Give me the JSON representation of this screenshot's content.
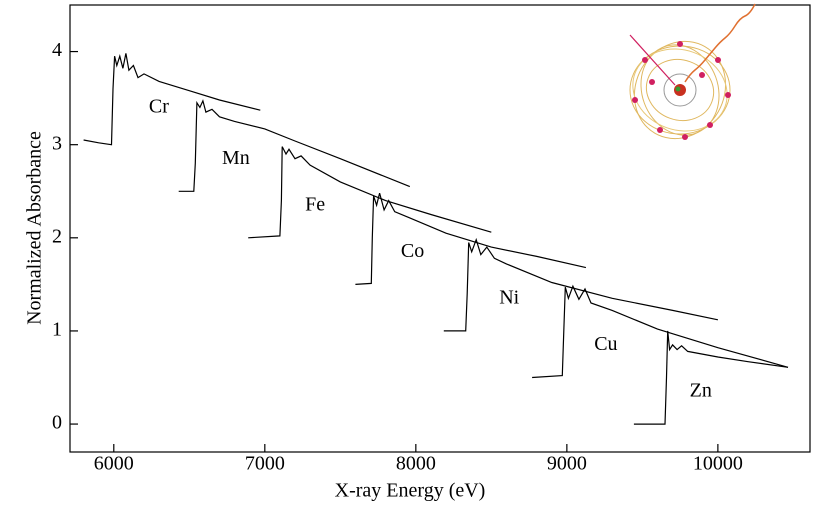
{
  "chart_data": {
    "type": "line",
    "xlabel": "X-ray Energy (eV)",
    "ylabel": "Normalized Absorbance",
    "xlim": [
      5710,
      10610
    ],
    "ylim": [
      -0.3,
      4.5
    ],
    "xticks": [
      6000,
      7000,
      8000,
      9000,
      10000
    ],
    "yticks": [
      0,
      1,
      2,
      3,
      4
    ],
    "series": [
      {
        "name": "Cr",
        "color": "#000000",
        "x": [
          5800,
          5900,
          5985,
          5995,
          6005,
          6020,
          6040,
          6060,
          6080,
          6100,
          6130,
          6160,
          6200,
          6300,
          6500,
          6700,
          6970
        ],
        "values": [
          3.05,
          3.02,
          3.0,
          3.6,
          3.95,
          3.85,
          3.95,
          3.82,
          3.98,
          3.8,
          3.85,
          3.72,
          3.76,
          3.68,
          3.58,
          3.48,
          3.37
        ]
      },
      {
        "name": "Mn",
        "color": "#000000",
        "x": [
          6430,
          6530,
          6540,
          6550,
          6570,
          6590,
          6610,
          6650,
          6700,
          6800,
          7000,
          7200,
          7500,
          7960
        ],
        "values": [
          2.5,
          2.5,
          2.8,
          3.45,
          3.4,
          3.47,
          3.35,
          3.38,
          3.3,
          3.25,
          3.17,
          3.04,
          2.85,
          2.55
        ]
      },
      {
        "name": "Fe",
        "color": "#000000",
        "x": [
          6890,
          7100,
          7110,
          7115,
          7140,
          7160,
          7200,
          7240,
          7300,
          7500,
          7800,
          8100,
          8500
        ],
        "values": [
          2.0,
          2.02,
          2.4,
          2.98,
          2.9,
          2.95,
          2.85,
          2.88,
          2.78,
          2.6,
          2.4,
          2.25,
          2.06
        ]
      },
      {
        "name": "Co",
        "color": "#000000",
        "x": [
          7600,
          7705,
          7712,
          7720,
          7740,
          7760,
          7790,
          7820,
          7860,
          7950,
          8200,
          8500,
          8800,
          9126
        ],
        "values": [
          1.5,
          1.51,
          2.0,
          2.45,
          2.35,
          2.48,
          2.3,
          2.4,
          2.28,
          2.22,
          2.05,
          1.9,
          1.8,
          1.68
        ]
      },
      {
        "name": "Ni",
        "color": "#000000",
        "x": [
          8185,
          8330,
          8340,
          8350,
          8370,
          8400,
          8430,
          8470,
          8520,
          8600,
          8900,
          9300,
          9700,
          10000
        ],
        "values": [
          1.0,
          1.0,
          1.4,
          1.95,
          1.85,
          1.98,
          1.82,
          1.9,
          1.78,
          1.72,
          1.52,
          1.35,
          1.22,
          1.12
        ]
      },
      {
        "name": "Cu",
        "color": "#000000",
        "x": [
          8770,
          8970,
          8980,
          8990,
          9010,
          9040,
          9080,
          9120,
          9160,
          9300,
          9600,
          10000,
          10464
        ],
        "values": [
          0.5,
          0.52,
          1.0,
          1.47,
          1.35,
          1.48,
          1.34,
          1.45,
          1.3,
          1.22,
          1.02,
          0.82,
          0.61
        ]
      },
      {
        "name": "Zn",
        "color": "#000000",
        "x": [
          9444,
          9650,
          9660,
          9668,
          9680,
          9700,
          9730,
          9760,
          9800,
          10000,
          10200,
          10464
        ],
        "values": [
          0.0,
          0.0,
          0.5,
          1.0,
          0.8,
          0.85,
          0.8,
          0.84,
          0.78,
          0.72,
          0.67,
          0.61
        ]
      }
    ]
  }
}
